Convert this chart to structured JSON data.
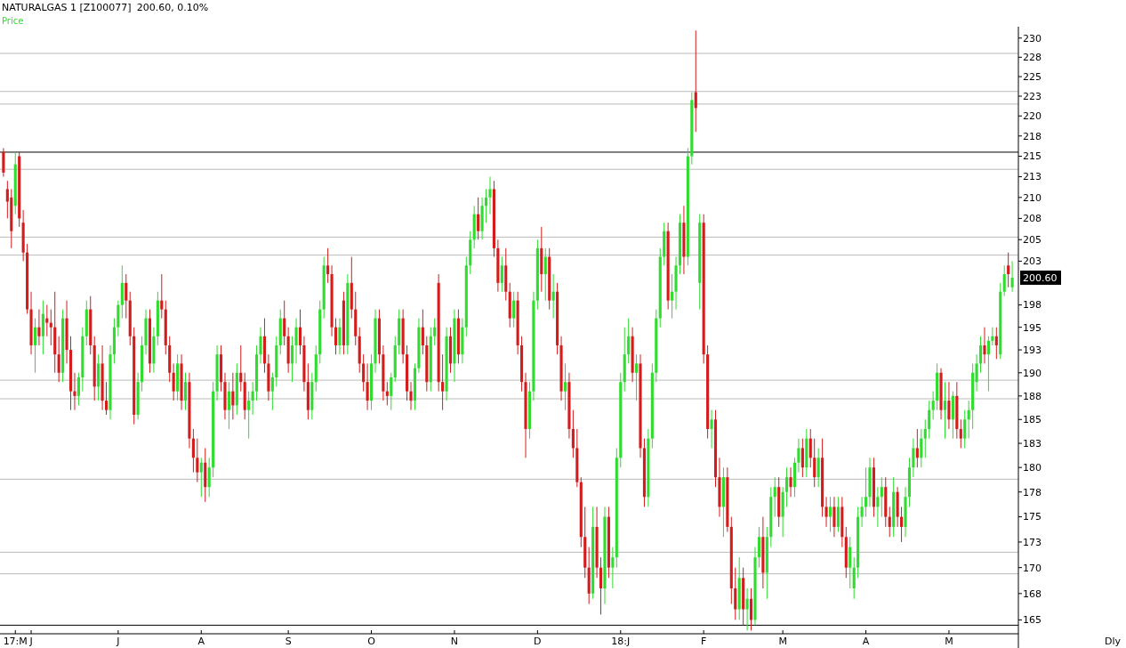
{
  "chart_data": {
    "type": "candlestick",
    "title": "NATURALGAS 1 [Z100077]",
    "subtitle": "200.60,  0.10%",
    "legend": "top left",
    "grid": false,
    "log": "y",
    "ylim": [
      163.7,
      231.5
    ],
    "yticks": [
      165,
      {
        "value": 167.5,
        "label": "168"
      },
      170,
      {
        "value": 172.5,
        "label": "173"
      },
      175,
      {
        "value": 177.5,
        "label": "178"
      },
      180,
      {
        "value": 182.5,
        "label": "183"
      },
      185,
      {
        "value": 187.5,
        "label": "188"
      },
      190,
      {
        "value": 192.5,
        "label": "193"
      },
      195,
      {
        "value": 197.5,
        "label": "198"
      },
      {
        "value": 202.5,
        "label": "203"
      },
      205,
      {
        "value": 207.5,
        "label": "208"
      },
      210,
      {
        "value": 212.5,
        "label": "213"
      },
      215,
      {
        "value": 217.5,
        "label": "218"
      },
      220,
      {
        "value": 222.5,
        "label": "223"
      },
      225,
      {
        "value": 227.5,
        "label": "228"
      },
      230
    ],
    "ref_lines": [
      {
        "axis": "y",
        "value": 215.5,
        "color": "#000000"
      },
      {
        "axis": "y",
        "value": 164.5,
        "color": "#000000"
      },
      {
        "axis": "y",
        "value": 228.0,
        "color": "#bbbbbb"
      },
      {
        "axis": "y",
        "value": 223.1,
        "color": "#bbbbbb"
      },
      {
        "axis": "y",
        "value": 221.5,
        "color": "#bbbbbb"
      },
      {
        "axis": "y",
        "value": 213.4,
        "color": "#bbbbbb"
      },
      {
        "axis": "y",
        "value": 205.3,
        "color": "#bbbbbb"
      },
      {
        "axis": "y",
        "value": 203.2,
        "color": "#bbbbbb"
      },
      {
        "axis": "y",
        "value": 189.2,
        "color": "#bbbbbb"
      },
      {
        "axis": "y",
        "value": 187.2,
        "color": "#bbbbbb"
      },
      {
        "axis": "y",
        "value": 178.8,
        "color": "#bbbbbb"
      },
      {
        "axis": "y",
        "value": 171.5,
        "color": "#bbbbbb"
      },
      {
        "axis": "y",
        "value": 169.4,
        "color": "#bbbbbb"
      }
    ],
    "annotations": [
      "200.60",
      "Dly"
    ],
    "categories": [
      null,
      null,
      null,
      "17:M",
      null,
      null,
      null,
      "J",
      null,
      null,
      null,
      null,
      null,
      null,
      null,
      null,
      null,
      null,
      null,
      null,
      null,
      null,
      null,
      null,
      null,
      null,
      null,
      null,
      null,
      "J",
      null,
      null,
      null,
      null,
      null,
      null,
      null,
      null,
      null,
      null,
      null,
      null,
      null,
      null,
      null,
      null,
      null,
      null,
      null,
      null,
      "A",
      null,
      null,
      null,
      null,
      null,
      null,
      null,
      null,
      null,
      null,
      null,
      null,
      null,
      null,
      null,
      null,
      null,
      null,
      null,
      null,
      null,
      "S",
      null,
      null,
      null,
      null,
      null,
      null,
      null,
      null,
      null,
      null,
      null,
      null,
      null,
      null,
      null,
      null,
      null,
      null,
      null,
      null,
      "O",
      null,
      null,
      null,
      null,
      null,
      null,
      null,
      null,
      null,
      null,
      null,
      null,
      null,
      null,
      null,
      null,
      null,
      null,
      null,
      null,
      "N",
      null,
      null,
      null,
      null,
      null,
      null,
      null,
      null,
      null,
      null,
      null,
      null,
      null,
      null,
      null,
      null,
      null,
      null,
      null,
      null,
      "D",
      null,
      null,
      null,
      null,
      null,
      null,
      null,
      null,
      null,
      null,
      null,
      null,
      null,
      null,
      null,
      null,
      null,
      null,
      null,
      null,
      "18:J",
      null,
      null,
      null,
      null,
      null,
      null,
      null,
      null,
      null,
      null,
      null,
      null,
      null,
      null,
      null,
      null,
      null,
      null,
      null,
      null,
      "F",
      null,
      null,
      null,
      null,
      null,
      null,
      null,
      null,
      null,
      null,
      null,
      null,
      null,
      null,
      null,
      null,
      null,
      null,
      null,
      "M",
      null,
      null,
      null,
      null,
      null,
      null,
      null,
      null,
      null,
      null,
      null,
      null,
      null,
      null,
      null,
      null,
      null,
      null,
      null,
      null,
      "A",
      null,
      null,
      null,
      null,
      null,
      null,
      null,
      null,
      null,
      null,
      null,
      null,
      null,
      null,
      null,
      null,
      null,
      null,
      null,
      null,
      "M",
      null,
      null,
      null,
      null,
      null,
      null,
      null,
      null,
      null,
      null,
      null,
      null,
      null,
      null,
      null,
      null
    ],
    "series": [
      {
        "name": "Price",
        "color": "#2fdc2f",
        "colors": [
          "#d41c1c",
          "#d41c1c",
          "#d41c1c",
          "#2fdc2f",
          "#d41c1c",
          "#d41c1c",
          "#d41c1c",
          "#d41c1c",
          "#2fdc2f",
          "#d41c1c",
          "#2fdc2f",
          "#d41c1c",
          "#d41c1c",
          "#d41c1c",
          "#d41c1c",
          "#2fdc2f",
          "#d41c1c",
          "#d41c1c",
          "#d41c1c",
          "#2fdc2f",
          "#2fdc2f",
          "#2fdc2f",
          "#d41c1c",
          "#d41c1c",
          "#2fdc2f",
          "#d41c1c",
          "#d41c1c",
          "#2fdc2f",
          "#2fdc2f",
          "#2fdc2f",
          "#2fdc2f",
          "#d41c1c",
          "#d41c1c",
          "#d41c1c",
          "#2fdc2f",
          "#2fdc2f",
          "#2fdc2f",
          "#d41c1c",
          "#2fdc2f",
          "#2fdc2f",
          "#d41c1c",
          "#d41c1c",
          "#d41c1c",
          "#d41c1c",
          "#2fdc2f",
          "#d41c1c",
          "#2fdc2f",
          "#d41c1c",
          "#d41c1c",
          "#d41c1c",
          "#2fdc2f",
          "#d41c1c",
          "#2fdc2f",
          "#2fdc2f",
          "#2fdc2f",
          "#d41c1c",
          "#d41c1c",
          "#2fdc2f",
          "#d41c1c",
          "#2fdc2f",
          "#d41c1c",
          "#d41c1c",
          "#2fdc2f",
          "#2fdc2f",
          "#2fdc2f",
          "#2fdc2f",
          "#d41c1c",
          "#d41c1c",
          "#2fdc2f",
          "#2fdc2f",
          "#2fdc2f",
          "#d41c1c",
          "#d41c1c",
          "#2fdc2f",
          "#2fdc2f",
          "#d41c1c",
          "#d41c1c",
          "#d41c1c",
          "#2fdc2f",
          "#2fdc2f",
          "#2fdc2f",
          "#2fdc2f",
          "#d41c1c",
          "#d41c1c",
          "#d41c1c",
          "#2fdc2f",
          "#d41c1c",
          "#2fdc2f",
          "#d41c1c",
          "#d41c1c",
          "#d41c1c",
          "#d41c1c",
          "#d41c1c",
          "#2fdc2f",
          "#2fdc2f",
          "#d41c1c",
          "#d41c1c",
          "#d41c1c",
          "#2fdc2f",
          "#2fdc2f",
          "#2fdc2f",
          "#d41c1c",
          "#d41c1c",
          "#d41c1c",
          "#2fdc2f",
          "#2fdc2f",
          "#d41c1c",
          "#d41c1c",
          "#2fdc2f",
          "#2fdc2f",
          "#d41c1c",
          "#d41c1c",
          "#2fdc2f",
          "#d41c1c",
          "#2fdc2f",
          "#d41c1c",
          "#2fdc2f",
          "#2fdc2f",
          "#2fdc2f",
          "#2fdc2f",
          "#d41c1c",
          "#2fdc2f",
          "#2fdc2f",
          "#2fdc2f",
          "#d41c1c",
          "#d41c1c",
          "#2fdc2f",
          "#d41c1c",
          "#d41c1c",
          "#2fdc2f",
          "#d41c1c",
          "#d41c1c",
          "#d41c1c",
          "#2fdc2f",
          "#2fdc2f",
          "#2fdc2f",
          "#d41c1c",
          "#2fdc2f",
          "#d41c1c",
          "#2fdc2f",
          "#d41c1c",
          "#d41c1c",
          "#2fdc2f",
          "#d41c1c",
          "#d41c1c",
          "#d41c1c",
          "#d41c1c",
          "#d41c1c",
          "#d41c1c",
          "#2fdc2f",
          "#d41c1c",
          "#d41c1c",
          "#2fdc2f",
          "#d41c1c",
          "#2fdc2f",
          "#2fdc2f",
          "#2fdc2f",
          "#2fdc2f",
          "#2fdc2f",
          "#d41c1c",
          "#2fdc2f",
          "#d41c1c",
          "#d41c1c",
          "#2fdc2f",
          "#2fdc2f",
          "#2fdc2f",
          "#2fdc2f",
          "#2fdc2f",
          "#d41c1c",
          "#2fdc2f",
          "#2fdc2f",
          "#2fdc2f",
          "#d41c1c",
          "#2fdc2f",
          "#2fdc2f",
          "#d41c1c",
          "#2fdc2f",
          "#d41c1c",
          "#d41c1c",
          "#2fdc2f",
          "#d41c1c",
          "#d41c1c",
          "#2fdc2f",
          "#d41c1c",
          "#d41c1c",
          "#d41c1c",
          "#2fdc2f",
          "#d41c1c",
          "#2fdc2f",
          "#d41c1c",
          "#2fdc2f",
          "#2fdc2f",
          "#d41c1c",
          "#2fdc2f",
          "#2fdc2f",
          "#2fdc2f",
          "#d41c1c",
          "#2fdc2f",
          "#2fdc2f",
          "#d41c1c",
          "#2fdc2f",
          "#2fdc2f",
          "#d41c1c",
          "#2fdc2f",
          "#d41c1c",
          "#d41c1c",
          "#2fdc2f",
          "#d41c1c",
          "#d41c1c",
          "#2fdc2f",
          "#d41c1c",
          "#2fdc2f",
          "#d41c1c",
          "#d41c1c",
          "#2fdc2f",
          "#2fdc2f",
          "#2fdc2f",
          "#2fdc2f",
          "#2fdc2f",
          "#2fdc2f",
          "#d41c1c",
          "#2fdc2f",
          "#2fdc2f",
          "#d41c1c",
          "#d41c1c",
          "#2fdc2f",
          "#d41c1c",
          "#d41c1c",
          "#2fdc2f",
          "#2fdc2f",
          "#2fdc2f",
          "#d41c1c",
          "#2fdc2f",
          "#2fdc2f",
          "#2fdc2f",
          "#2fdc2f",
          "#2fdc2f",
          "#d41c1c",
          "#2fdc2f",
          "#d41c1c",
          "#2fdc2f",
          "#d41c1c",
          "#d41c1c",
          "#2fdc2f",
          "#2fdc2f",
          "#2fdc2f",
          "#2fdc2f",
          "#2fdc2f",
          "#d41c1c",
          "#2fdc2f",
          "#2fdc2f",
          "#d41c1c",
          "#2fdc2f",
          "#2fdc2f",
          "#d41c1c",
          "#2fdc2f"
        ],
        "ohlc": [
          [
            215.5,
            216,
            212.5,
            213
          ],
          [
            211,
            212,
            207.5,
            209.5
          ],
          [
            210,
            211,
            204,
            206
          ],
          [
            209,
            215.5,
            208,
            214
          ],
          [
            215,
            215.5,
            206.5,
            207.5
          ],
          [
            207,
            208.5,
            202.5,
            203.5
          ],
          [
            203.5,
            204.5,
            196.5,
            197
          ],
          [
            197,
            199,
            192,
            193
          ],
          [
            193,
            196,
            190,
            195
          ],
          [
            195,
            197,
            193,
            194
          ],
          [
            194,
            198,
            192,
            196.5
          ],
          [
            196,
            197.5,
            194,
            195.5
          ],
          [
            195.5,
            197,
            193,
            195
          ],
          [
            195,
            199,
            190,
            192
          ],
          [
            192,
            194,
            189,
            190
          ],
          [
            190,
            197,
            189,
            196
          ],
          [
            196,
            198,
            191,
            192.5
          ],
          [
            192.5,
            194,
            186,
            188
          ],
          [
            188,
            190,
            186,
            187.5
          ],
          [
            187.5,
            190,
            186.5,
            189.5
          ],
          [
            189.5,
            195,
            188,
            194
          ],
          [
            194,
            198,
            193,
            197
          ],
          [
            197,
            198.5,
            192,
            193
          ],
          [
            193,
            194,
            187,
            188.5
          ],
          [
            188.5,
            192,
            187,
            191
          ],
          [
            191,
            193,
            186,
            187
          ],
          [
            187,
            189,
            185.5,
            186
          ],
          [
            186,
            193,
            185,
            192
          ],
          [
            192,
            196,
            191,
            195
          ],
          [
            195,
            198,
            194,
            197.5
          ],
          [
            197.5,
            202,
            196,
            200
          ],
          [
            200,
            201,
            196,
            198
          ],
          [
            198,
            199,
            193,
            194
          ],
          [
            194,
            195,
            184.5,
            185.5
          ],
          [
            185.5,
            190,
            185,
            189
          ],
          [
            189,
            194,
            188,
            193
          ],
          [
            193,
            197,
            192,
            196
          ],
          [
            196,
            197,
            190,
            191
          ],
          [
            191,
            195,
            190,
            194
          ],
          [
            194,
            199,
            193,
            198
          ],
          [
            198,
            201,
            196,
            197
          ],
          [
            197,
            198,
            192,
            193
          ],
          [
            193,
            194,
            189,
            190
          ],
          [
            190,
            191,
            187,
            188
          ],
          [
            188,
            192,
            187,
            191
          ],
          [
            191,
            192,
            186,
            187
          ],
          [
            187,
            190,
            186,
            189
          ],
          [
            189,
            190,
            182,
            183
          ],
          [
            183,
            184,
            179.5,
            181
          ],
          [
            181,
            183,
            178.5,
            179.5
          ],
          [
            179.5,
            181,
            177,
            180.5
          ],
          [
            180.5,
            182,
            176.5,
            178
          ],
          [
            178,
            181,
            177,
            180
          ],
          [
            180,
            189,
            179,
            188
          ],
          [
            188,
            193,
            187,
            192
          ],
          [
            192,
            193,
            188,
            189
          ],
          [
            189,
            190,
            185,
            186
          ],
          [
            186,
            189,
            184,
            188
          ],
          [
            188,
            190,
            185,
            186.5
          ],
          [
            186.5,
            191,
            185.5,
            190
          ],
          [
            190,
            193,
            188,
            189
          ],
          [
            189,
            190,
            185,
            186
          ],
          [
            186,
            188,
            183,
            187
          ],
          [
            187,
            189,
            185.5,
            188
          ],
          [
            188,
            193,
            187,
            192
          ],
          [
            192,
            195,
            191,
            194
          ],
          [
            194,
            196,
            190,
            191
          ],
          [
            191,
            192,
            187,
            188
          ],
          [
            188,
            190,
            186,
            189.5
          ],
          [
            189.5,
            194,
            188.5,
            193
          ],
          [
            193,
            197,
            192,
            196
          ],
          [
            196,
            198,
            193,
            194
          ],
          [
            194,
            195,
            190,
            191
          ],
          [
            191,
            194,
            189,
            193
          ],
          [
            193,
            196,
            191,
            195
          ],
          [
            195,
            197,
            192,
            193
          ],
          [
            193,
            194,
            188,
            189
          ],
          [
            189,
            191,
            185,
            186
          ],
          [
            186,
            190,
            185,
            189
          ],
          [
            189,
            193,
            188,
            192
          ],
          [
            192,
            198,
            191,
            197
          ],
          [
            197,
            203,
            196,
            202
          ],
          [
            202,
            204,
            200,
            201
          ],
          [
            201,
            202,
            194,
            195
          ],
          [
            195,
            196,
            192,
            193
          ],
          [
            193,
            196,
            192,
            195
          ],
          [
            198,
            199,
            192,
            193
          ],
          [
            193,
            201,
            192,
            200
          ],
          [
            200,
            203,
            196,
            197
          ],
          [
            197,
            199,
            193,
            194
          ],
          [
            194,
            195,
            190,
            191
          ],
          [
            191,
            192,
            188,
            189
          ],
          [
            189,
            191,
            186,
            187
          ],
          [
            187,
            192,
            186,
            191
          ],
          [
            191,
            197,
            190,
            196
          ],
          [
            196,
            197,
            191,
            192
          ],
          [
            192,
            193,
            187,
            188
          ],
          [
            188,
            189,
            186.5,
            187.5
          ],
          [
            187.5,
            190,
            186,
            189.5
          ],
          [
            189.5,
            194,
            189,
            193
          ],
          [
            193,
            197,
            192,
            196
          ],
          [
            196,
            197,
            191,
            192
          ],
          [
            192,
            193,
            187,
            188
          ],
          [
            188,
            189,
            186,
            187
          ],
          [
            187,
            191,
            186,
            190.5
          ],
          [
            190.5,
            196,
            190,
            195
          ],
          [
            195,
            197,
            192,
            193
          ],
          [
            193,
            194,
            188,
            189
          ],
          [
            189,
            195,
            188,
            194
          ],
          [
            194,
            196,
            193,
            195
          ],
          [
            200,
            201,
            188,
            189
          ],
          [
            189,
            192,
            186,
            188
          ],
          [
            188,
            195,
            187,
            194
          ],
          [
            194,
            195,
            190,
            191
          ],
          [
            191,
            197,
            189,
            196
          ],
          [
            196,
            197,
            191,
            192
          ],
          [
            192,
            196,
            191,
            195
          ],
          [
            195,
            203,
            194,
            202
          ],
          [
            202,
            206,
            201,
            205
          ],
          [
            205,
            209,
            204,
            208
          ],
          [
            208,
            210,
            205,
            206
          ],
          [
            206,
            210,
            205,
            209
          ],
          [
            209,
            211,
            207,
            210
          ],
          [
            210,
            212.5,
            208,
            211
          ],
          [
            211,
            212,
            203,
            204
          ],
          [
            204,
            205,
            199,
            200
          ],
          [
            200,
            203,
            199,
            202
          ],
          [
            202,
            204,
            198,
            199
          ],
          [
            199,
            200,
            195,
            196
          ],
          [
            196,
            199,
            195,
            198
          ],
          [
            198,
            199,
            192,
            193
          ],
          [
            193,
            194,
            188,
            189
          ],
          [
            189,
            190,
            181,
            184
          ],
          [
            184,
            189,
            183,
            188
          ],
          [
            188,
            199,
            187,
            198
          ],
          [
            198,
            205,
            197,
            204
          ],
          [
            204,
            206.5,
            199,
            201
          ],
          [
            201,
            204,
            198,
            203
          ],
          [
            203,
            204,
            197,
            198
          ],
          [
            198,
            201,
            196,
            199
          ],
          [
            199,
            200,
            192,
            193
          ],
          [
            193,
            194,
            187,
            188
          ],
          [
            188,
            191,
            186,
            189
          ],
          [
            189,
            190,
            183,
            184
          ],
          [
            184,
            186,
            181,
            182
          ],
          [
            182,
            184,
            178,
            178.5
          ],
          [
            178.5,
            179,
            172,
            173
          ],
          [
            173,
            176,
            169,
            170
          ],
          [
            170,
            172,
            166.5,
            167.5
          ],
          [
            167.5,
            176,
            167,
            174
          ],
          [
            174,
            176,
            169,
            170
          ],
          [
            170,
            171,
            165.5,
            168
          ],
          [
            168,
            176,
            166.5,
            175
          ],
          [
            175,
            176,
            169,
            170
          ],
          [
            170,
            172,
            168,
            171
          ],
          [
            171,
            182,
            170,
            181
          ],
          [
            181,
            190,
            180,
            189
          ],
          [
            189,
            195,
            188,
            192
          ],
          [
            192,
            196,
            191,
            194
          ],
          [
            194,
            195,
            189,
            190
          ],
          [
            190,
            192,
            187,
            191
          ],
          [
            191,
            192,
            181,
            182
          ],
          [
            182,
            183,
            176,
            177
          ],
          [
            177,
            184,
            176,
            183
          ],
          [
            183,
            191,
            182,
            190
          ],
          [
            190,
            197,
            189,
            196
          ],
          [
            196,
            204,
            195,
            203
          ],
          [
            203,
            207,
            202,
            206
          ],
          [
            206,
            207,
            197,
            198
          ],
          [
            198,
            201,
            196,
            199
          ],
          [
            199,
            203,
            197,
            202
          ],
          [
            202,
            208,
            201,
            207
          ],
          [
            207,
            209,
            201,
            203
          ],
          [
            203,
            216,
            202,
            215
          ],
          [
            215,
            223,
            214,
            222
          ],
          [
            223,
            231,
            218,
            221
          ],
          [
            200,
            208,
            197,
            207
          ],
          [
            207,
            208,
            191,
            192
          ],
          [
            192,
            193,
            183,
            184
          ],
          [
            184,
            186,
            182,
            185
          ],
          [
            185,
            186,
            178,
            179
          ],
          [
            179,
            181,
            175,
            176
          ],
          [
            176,
            180,
            173,
            179
          ],
          [
            179,
            180,
            173.5,
            174
          ],
          [
            174,
            175,
            166.5,
            168
          ],
          [
            168,
            170,
            165,
            166
          ],
          [
            166,
            171,
            165,
            169
          ],
          [
            169,
            170,
            164.5,
            166
          ],
          [
            166,
            168,
            164,
            167
          ],
          [
            167,
            168,
            164,
            165
          ],
          [
            165,
            172,
            164.5,
            171
          ],
          [
            171,
            174,
            170,
            173
          ],
          [
            173,
            175,
            168,
            169.5
          ],
          [
            169.5,
            174,
            167,
            173
          ],
          [
            173,
            178,
            172,
            177
          ],
          [
            177,
            179,
            175,
            178
          ],
          [
            178,
            179,
            174,
            175
          ],
          [
            175,
            178,
            173,
            177.5
          ],
          [
            177.5,
            180,
            176,
            179
          ],
          [
            179,
            180,
            177,
            178
          ],
          [
            178,
            181,
            177,
            180.5
          ],
          [
            180.5,
            183,
            179.5,
            182
          ],
          [
            182,
            183,
            179,
            180
          ],
          [
            180,
            184,
            179,
            183
          ],
          [
            183,
            184,
            180,
            181
          ],
          [
            181,
            183,
            178,
            179
          ],
          [
            179,
            182,
            178,
            181
          ],
          [
            181,
            183,
            175,
            176
          ],
          [
            176,
            177,
            174,
            175
          ],
          [
            175,
            177,
            173.5,
            176
          ],
          [
            176,
            177,
            173,
            174
          ],
          [
            174,
            177,
            173.5,
            176
          ],
          [
            176,
            177,
            172,
            173
          ],
          [
            173,
            174,
            169,
            170
          ],
          [
            170,
            173,
            168,
            172
          ],
          [
            168,
            171,
            167,
            170
          ],
          [
            170,
            176,
            169,
            175
          ],
          [
            175,
            177,
            174,
            176
          ],
          [
            176,
            180,
            175,
            177
          ],
          [
            177,
            181,
            176,
            180
          ],
          [
            180,
            181,
            175,
            176
          ],
          [
            176,
            178,
            174,
            177
          ],
          [
            177,
            179,
            175,
            178
          ],
          [
            178,
            179,
            174,
            175
          ],
          [
            175,
            176,
            173,
            174
          ],
          [
            174,
            179,
            173,
            177.5
          ],
          [
            177.5,
            178,
            174,
            175
          ],
          [
            175,
            176,
            172.5,
            174
          ],
          [
            174,
            178,
            173,
            177
          ],
          [
            177,
            181,
            176,
            180
          ],
          [
            180,
            183,
            179,
            182
          ],
          [
            182,
            184,
            180,
            181
          ],
          [
            181,
            184,
            180,
            183
          ],
          [
            183,
            185,
            181,
            184
          ],
          [
            184,
            187,
            183,
            186
          ],
          [
            186,
            188,
            185,
            187
          ],
          [
            187,
            191,
            186,
            190
          ],
          [
            190,
            190.5,
            185,
            186
          ],
          [
            186,
            189,
            183,
            187
          ],
          [
            187,
            189,
            184,
            185
          ],
          [
            185,
            188,
            183,
            187.5
          ],
          [
            187.5,
            189,
            183,
            184
          ],
          [
            184,
            185,
            182,
            183
          ],
          [
            183,
            186,
            182,
            185
          ],
          [
            185,
            187,
            183,
            186
          ],
          [
            186,
            191,
            184,
            190
          ],
          [
            189,
            192,
            188,
            191
          ],
          [
            191,
            194,
            190,
            193
          ],
          [
            193,
            195,
            191,
            192
          ],
          [
            192,
            194,
            188,
            193.5
          ],
          [
            193.5,
            195,
            193,
            194
          ],
          [
            194,
            195,
            191.5,
            193
          ],
          [
            192,
            200,
            191.5,
            199
          ],
          [
            199,
            202,
            198.5,
            201
          ],
          [
            202,
            203.5,
            199.5,
            201
          ],
          [
            199.5,
            202.5,
            199,
            200.6
          ]
        ]
      }
    ]
  }
}
